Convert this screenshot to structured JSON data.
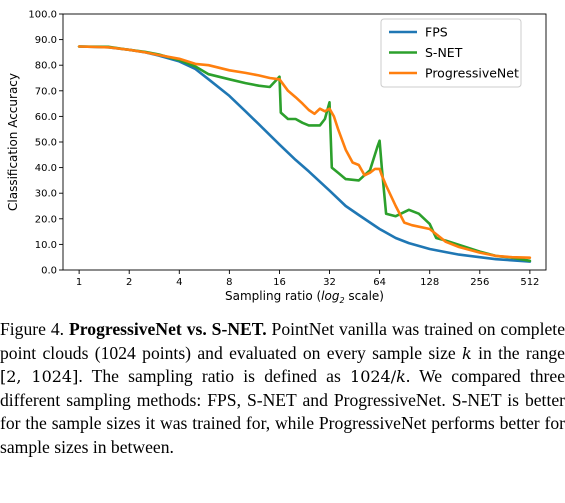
{
  "chart_data": {
    "type": "line",
    "xlabel_prefix": "Sampling ratio (",
    "xlabel_log": "log",
    "xlabel_sub": "2",
    "xlabel_suffix": " scale)",
    "ylabel": "Classification Accuracy",
    "xscale": "log2",
    "xlim": [
      0.8,
      640
    ],
    "ylim": [
      0,
      100
    ],
    "x_ticks": [
      1,
      2,
      4,
      8,
      16,
      32,
      64,
      128,
      256,
      512
    ],
    "x_tick_labels": [
      "1",
      "2",
      "4",
      "8",
      "16",
      "32",
      "64",
      "128",
      "256",
      "512"
    ],
    "y_ticks": [
      0,
      10,
      20,
      30,
      40,
      50,
      60,
      70,
      80,
      90,
      100
    ],
    "y_tick_labels": [
      "0.0",
      "10.0",
      "20.0",
      "30.0",
      "40.0",
      "50.0",
      "60.0",
      "70.0",
      "80.0",
      "90.0",
      "100.0"
    ],
    "grid": false,
    "legend_position": "top-right",
    "series": [
      {
        "name": "FPS",
        "color": "#1f77b4",
        "points": [
          [
            1,
            87.3
          ],
          [
            1.5,
            87
          ],
          [
            2,
            86
          ],
          [
            2.5,
            85
          ],
          [
            3,
            83.8
          ],
          [
            4,
            81.5
          ],
          [
            5,
            78.5
          ],
          [
            6,
            74.5
          ],
          [
            8,
            68
          ],
          [
            10,
            62
          ],
          [
            12,
            57
          ],
          [
            16,
            49
          ],
          [
            20,
            43
          ],
          [
            24,
            38.5
          ],
          [
            32,
            31
          ],
          [
            40,
            25
          ],
          [
            48,
            21.5
          ],
          [
            64,
            16
          ],
          [
            80,
            12.5
          ],
          [
            96,
            10.5
          ],
          [
            128,
            8.2
          ],
          [
            160,
            7
          ],
          [
            192,
            6
          ],
          [
            256,
            5
          ],
          [
            320,
            4.2
          ],
          [
            400,
            3.8
          ],
          [
            512,
            3.3
          ]
        ]
      },
      {
        "name": "S-NET",
        "color": "#2ca02c",
        "points": [
          [
            1,
            87.3
          ],
          [
            1.5,
            87.2
          ],
          [
            2,
            86
          ],
          [
            2.5,
            85.2
          ],
          [
            3,
            84.2
          ],
          [
            4,
            82
          ],
          [
            5,
            79.5
          ],
          [
            6,
            76.5
          ],
          [
            8,
            74.5
          ],
          [
            10,
            73
          ],
          [
            12,
            72
          ],
          [
            14,
            71.5
          ],
          [
            16,
            75.5
          ],
          [
            16.3,
            61.5
          ],
          [
            18,
            59
          ],
          [
            20,
            59
          ],
          [
            22,
            57.5
          ],
          [
            24,
            56.5
          ],
          [
            28,
            56.5
          ],
          [
            30,
            59
          ],
          [
            32,
            65.5
          ],
          [
            33,
            40
          ],
          [
            36,
            38
          ],
          [
            40,
            35.5
          ],
          [
            48,
            35
          ],
          [
            56,
            39
          ],
          [
            62,
            48
          ],
          [
            64,
            50.5
          ],
          [
            66,
            40
          ],
          [
            70,
            22
          ],
          [
            80,
            21
          ],
          [
            96,
            23.5
          ],
          [
            110,
            22
          ],
          [
            128,
            18
          ],
          [
            140,
            12.5
          ],
          [
            160,
            11.5
          ],
          [
            192,
            9.8
          ],
          [
            256,
            7.2
          ],
          [
            320,
            5.5
          ],
          [
            400,
            4.8
          ],
          [
            512,
            3.6
          ]
        ]
      },
      {
        "name": "ProgressiveNet",
        "color": "#ff7f0e",
        "points": [
          [
            1,
            87.3
          ],
          [
            1.5,
            87
          ],
          [
            2,
            86
          ],
          [
            2.5,
            85
          ],
          [
            3,
            84
          ],
          [
            4,
            82.5
          ],
          [
            5,
            80.5
          ],
          [
            6,
            80
          ],
          [
            8,
            78
          ],
          [
            10,
            77
          ],
          [
            12,
            76
          ],
          [
            14,
            75
          ],
          [
            16,
            74.5
          ],
          [
            18,
            70
          ],
          [
            20,
            67.5
          ],
          [
            22,
            65
          ],
          [
            24,
            62.5
          ],
          [
            26,
            61
          ],
          [
            28,
            63
          ],
          [
            30,
            62
          ],
          [
            32,
            63
          ],
          [
            34,
            60
          ],
          [
            36,
            55
          ],
          [
            40,
            47
          ],
          [
            44,
            42
          ],
          [
            48,
            41
          ],
          [
            52,
            37
          ],
          [
            56,
            38
          ],
          [
            60,
            39.5
          ],
          [
            64,
            39.5
          ],
          [
            66,
            37
          ],
          [
            70,
            33
          ],
          [
            80,
            25
          ],
          [
            90,
            18.5
          ],
          [
            100,
            17.5
          ],
          [
            128,
            16
          ],
          [
            160,
            11
          ],
          [
            192,
            9
          ],
          [
            256,
            6.8
          ],
          [
            320,
            5.5
          ],
          [
            400,
            5
          ],
          [
            512,
            4.8
          ]
        ]
      }
    ]
  },
  "caption": {
    "figure_number": "Figure 4.",
    "title": "ProgressiveNet vs. S-NET.",
    "text_part1": " PointNet vanilla was trained on complete point clouds (1024 points) and evaluated on every sample size ",
    "math_k": "k",
    "text_part2": " in the range ",
    "math_range": "[2, 1024]",
    "text_part3": ". The sampling ratio is defined as ",
    "math_ratio_num": "1024/",
    "math_ratio_var": "k",
    "text_part4": ". We compared three different sampling methods: FPS, S-NET and ProgressiveNet. S-NET is better for the sample sizes it was trained for, while ProgressiveNet performs better for sample sizes in between."
  }
}
